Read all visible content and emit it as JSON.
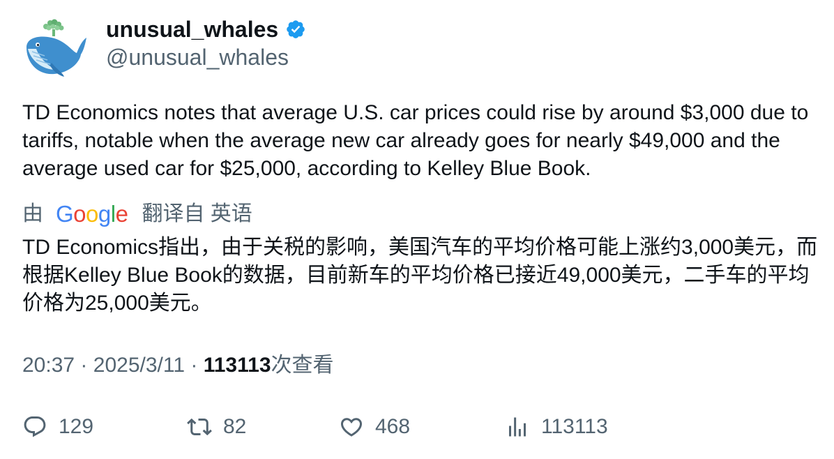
{
  "author": {
    "display_name": "unusual_whales",
    "handle": "@unusual_whales",
    "verified": true,
    "avatar_icon": "whale-icon",
    "verified_color": "#1d9bf0"
  },
  "tweet": {
    "text": "TD Economics notes that average U.S. car prices could rise by around $3,000 due to tariffs, notable when the average new car already goes for nearly $49,000 and the average used car for $25,000, according to Kelley Blue Book."
  },
  "translation": {
    "prefix": "由",
    "provider": "Google",
    "suffix": "翻译自 英语",
    "text": "TD Economics指出，由于关税的影响，美国汽车的平均价格可能上涨约3,000美元，而根据Kelley Blue Book的数据，目前新车的平均价格已接近49,000美元，二手车的平均价格为25,000美元。"
  },
  "meta": {
    "time": "20:37",
    "separator": "·",
    "date": "2025/3/11",
    "views_count": "113113",
    "views_label": "次查看"
  },
  "actions": {
    "replies": "129",
    "retweets": "82",
    "likes": "468",
    "views": "113113"
  },
  "colors": {
    "text_primary": "#0f1419",
    "text_secondary": "#536471",
    "google_blue": "#4285F4",
    "google_red": "#EA4335",
    "google_yellow": "#FBBC05",
    "google_green": "#34A853"
  }
}
